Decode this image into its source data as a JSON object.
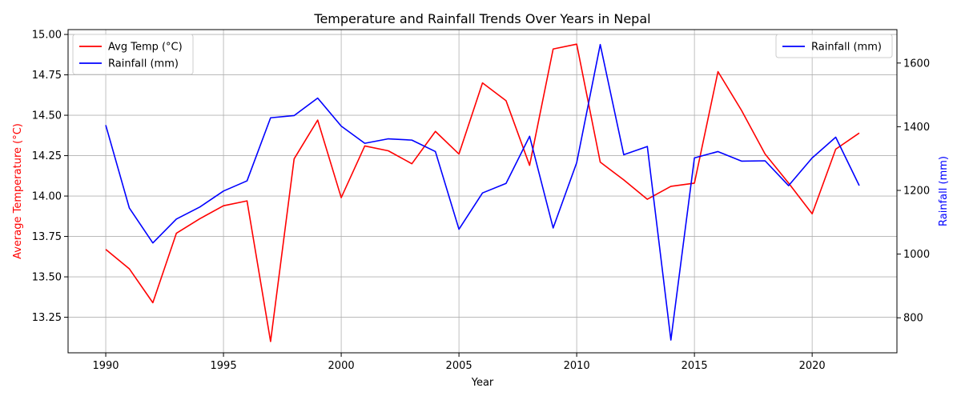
{
  "chart_data": {
    "type": "line",
    "title": "Temperature and Rainfall Trends Over Years in Nepal",
    "xlabel": "Year",
    "ylabel_left": "Average Temperature (°C)",
    "ylabel_right": "Rainfall (mm)",
    "x": [
      1990,
      1991,
      1992,
      1993,
      1994,
      1995,
      1996,
      1997,
      1998,
      1999,
      2000,
      2001,
      2002,
      2003,
      2004,
      2005,
      2006,
      2007,
      2008,
      2009,
      2010,
      2011,
      2012,
      2013,
      2014,
      2015,
      2016,
      2017,
      2018,
      2019,
      2020,
      2021,
      2022
    ],
    "xlim": [
      1988.4,
      2023.6
    ],
    "xticks": [
      1990,
      1995,
      2000,
      2005,
      2010,
      2015,
      2020
    ],
    "ylim_left": [
      13.03,
      15.03
    ],
    "yticks_left": [
      "13.25",
      "13.50",
      "13.75",
      "14.00",
      "14.25",
      "14.50",
      "14.75",
      "15.00"
    ],
    "ylim_right": [
      690,
      1705
    ],
    "yticks_right": [
      "800",
      "1000",
      "1200",
      "1400",
      "1600"
    ],
    "grid": true,
    "series": [
      {
        "name": "Avg Temp (°C)",
        "axis": "left",
        "color": "#ff0000",
        "values": [
          13.67,
          13.55,
          13.34,
          13.77,
          13.86,
          13.94,
          13.97,
          13.1,
          14.23,
          14.47,
          13.99,
          14.31,
          14.28,
          14.2,
          14.4,
          14.26,
          14.7,
          14.59,
          14.19,
          14.91,
          14.94,
          14.21,
          14.1,
          13.98,
          14.06,
          14.08,
          14.77,
          14.53,
          14.26,
          14.08,
          13.89,
          14.29,
          14.39
        ]
      },
      {
        "name": "Rainfall (mm)",
        "axis": "right",
        "color": "#0000ff",
        "values": [
          1405,
          1145,
          1035,
          1110,
          1148,
          1198,
          1230,
          1428,
          1435,
          1490,
          1402,
          1348,
          1362,
          1358,
          1322,
          1078,
          1192,
          1222,
          1370,
          1082,
          1287,
          1658,
          1312,
          1338,
          730,
          1302,
          1322,
          1292,
          1293,
          1215,
          1302,
          1367,
          1215
        ]
      }
    ],
    "legend_left": [
      "Avg Temp (°C)",
      "Rainfall (mm)"
    ],
    "legend_right": [
      "Rainfall (mm)"
    ],
    "legend_placement": [
      "upper-left",
      "upper-right"
    ]
  }
}
